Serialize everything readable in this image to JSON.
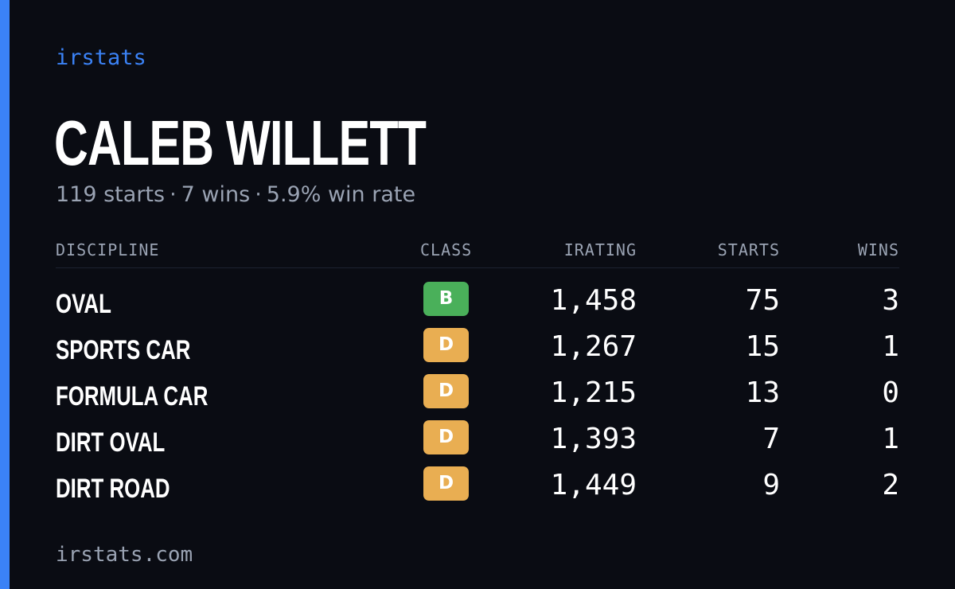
{
  "brand": "irstats",
  "driver": {
    "name": "CALEB WILLETT",
    "starts_text": "119 starts",
    "wins_text": "7 wins",
    "win_rate_text": "5.9% win rate",
    "separator": "·"
  },
  "table": {
    "headers": {
      "discipline": "DISCIPLINE",
      "class": "CLASS",
      "irating": "IRATING",
      "starts": "STARTS",
      "wins": "WINS"
    },
    "rows": [
      {
        "discipline": "OVAL",
        "class": "B",
        "irating": "1,458",
        "starts": "75",
        "wins": "3"
      },
      {
        "discipline": "SPORTS CAR",
        "class": "D",
        "irating": "1,267",
        "starts": "15",
        "wins": "1"
      },
      {
        "discipline": "FORMULA CAR",
        "class": "D",
        "irating": "1,215",
        "starts": "13",
        "wins": "0"
      },
      {
        "discipline": "DIRT OVAL",
        "class": "D",
        "irating": "1,393",
        "starts": "7",
        "wins": "1"
      },
      {
        "discipline": "DIRT ROAD",
        "class": "D",
        "irating": "1,449",
        "starts": "9",
        "wins": "2"
      }
    ]
  },
  "footer": "irstats.com",
  "colors": {
    "background": "#0a0c13",
    "accent": "#3b82f6",
    "class_b": "#4ab05a",
    "class_d": "#e9ae52",
    "muted_text": "#9aa3b3"
  }
}
